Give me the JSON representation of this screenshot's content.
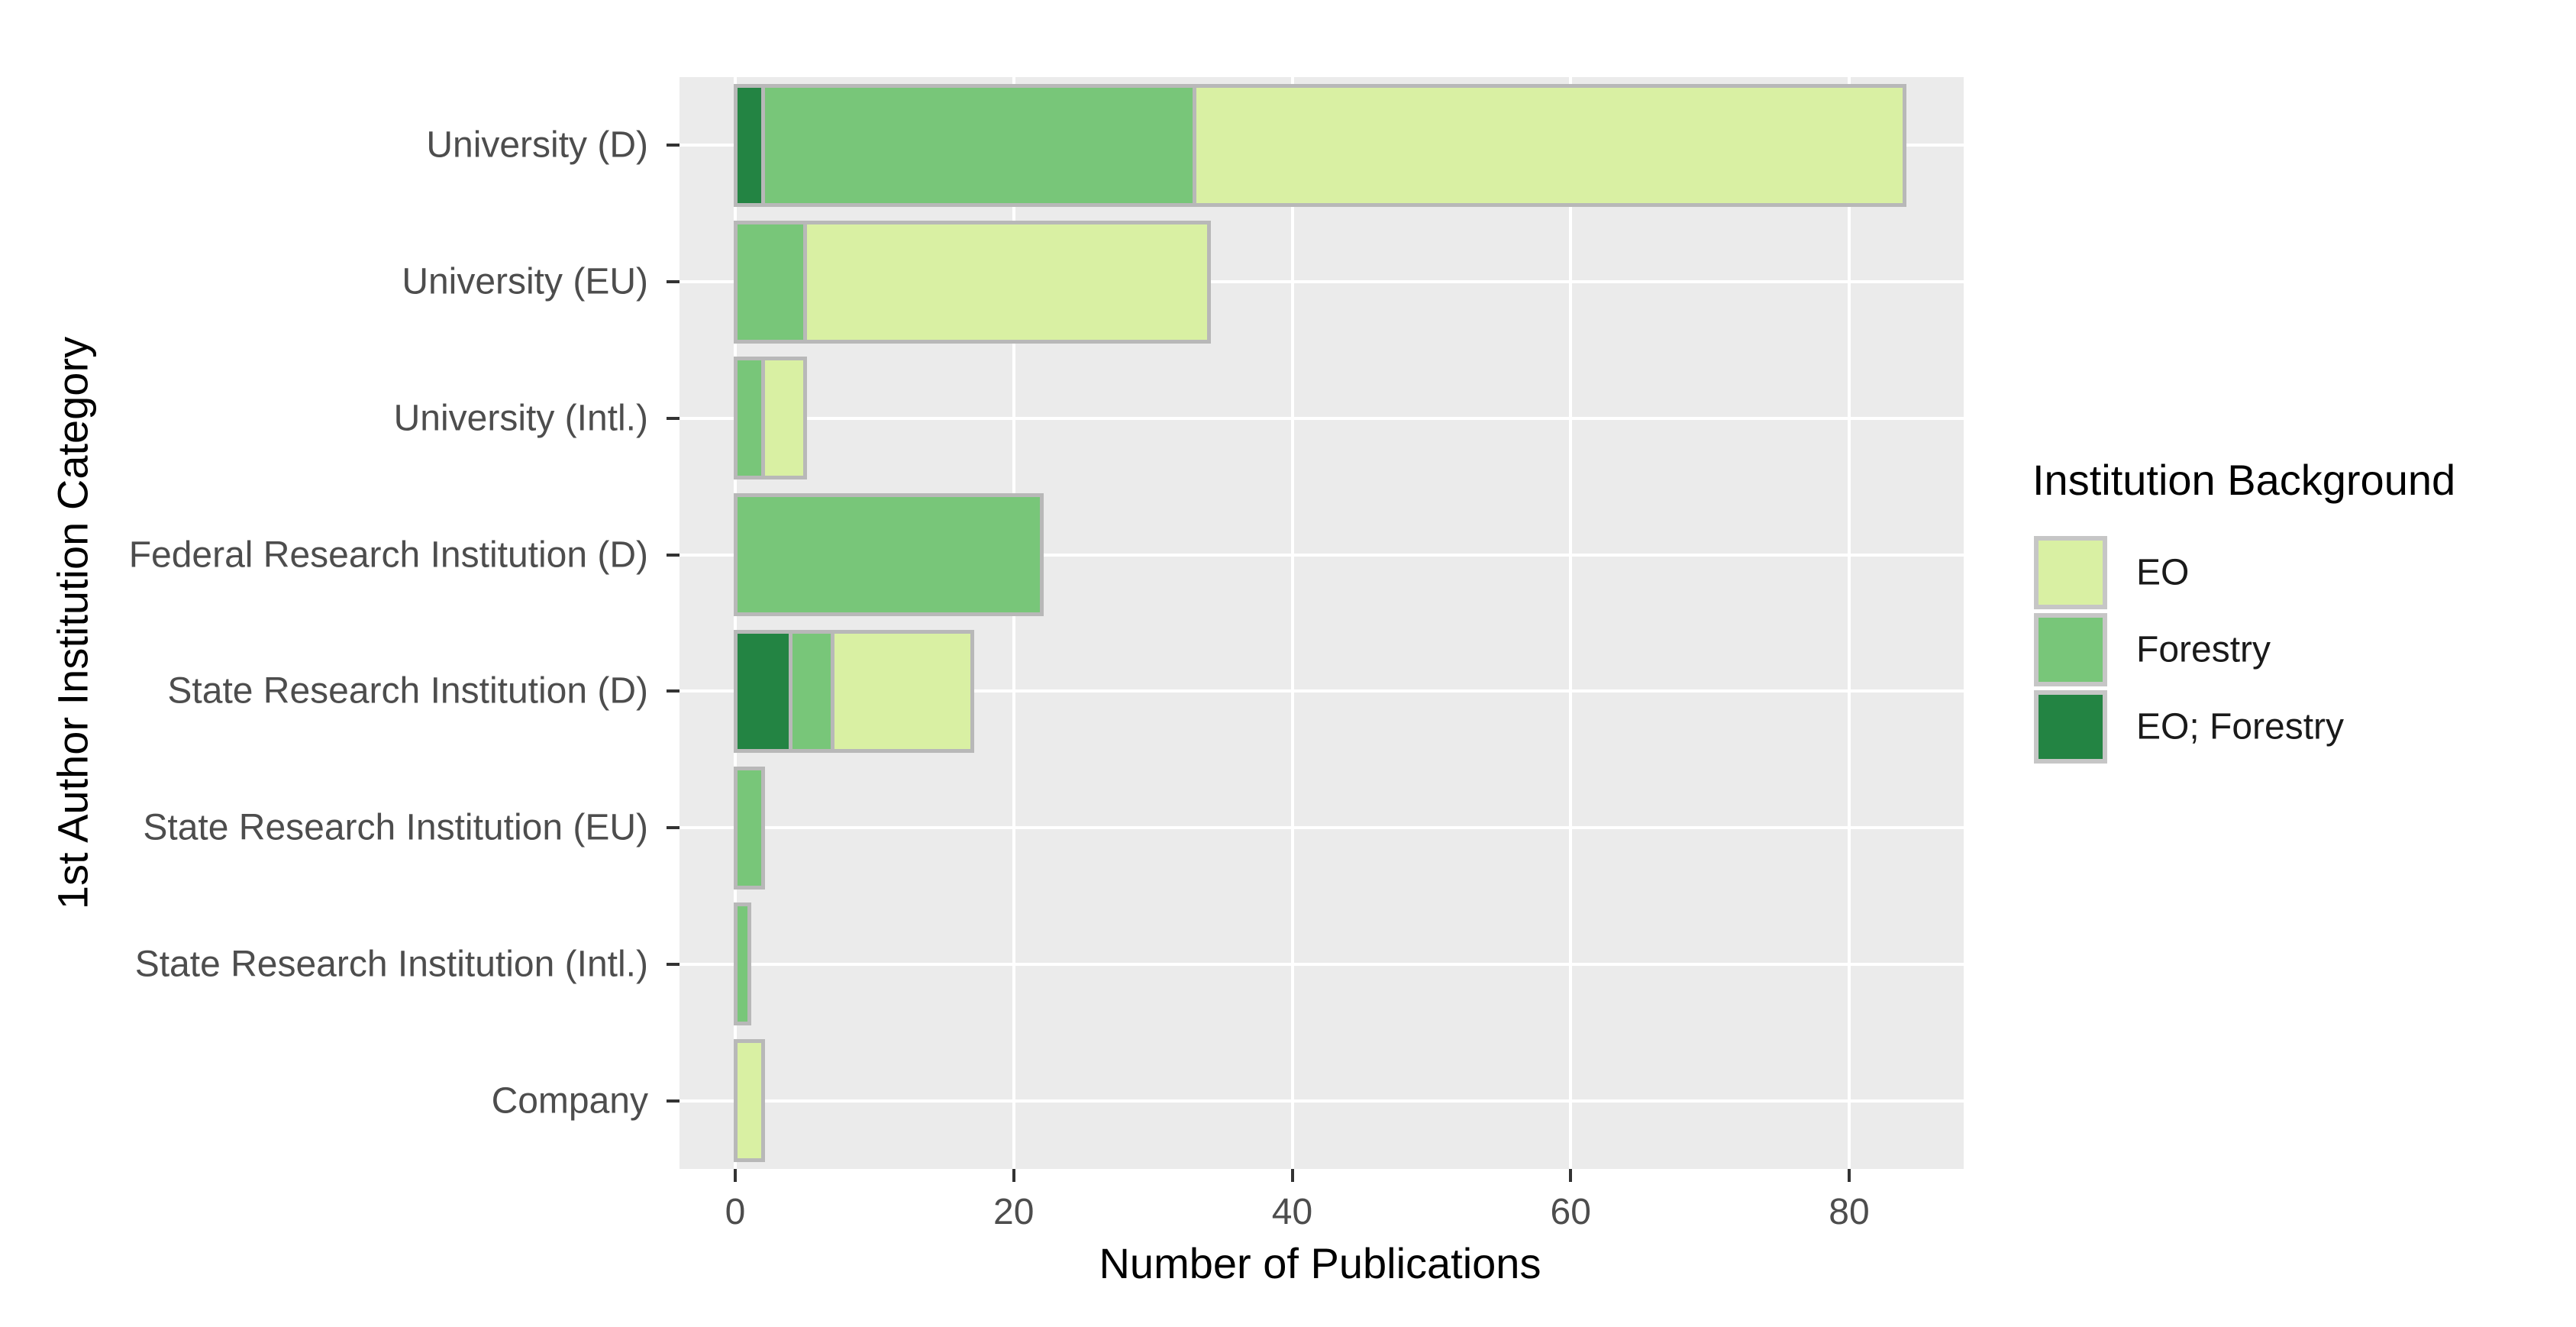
{
  "chart_data": {
    "type": "bar",
    "orientation": "horizontal",
    "stacked": true,
    "categories": [
      "University (D)",
      "University (EU)",
      "University (Intl.)",
      "Federal Research Institution (D)",
      "State Research Institution (D)",
      "State Research Institution (EU)",
      "State Research Institution (Intl.)",
      "Company"
    ],
    "series": [
      {
        "name": "EO",
        "color": "#d9f0a3",
        "values": [
          51,
          29,
          3,
          0,
          10,
          0,
          0,
          2
        ]
      },
      {
        "name": "Forestry",
        "color": "#78c679",
        "values": [
          31,
          5,
          2,
          22,
          3,
          2,
          1,
          0
        ]
      },
      {
        "name": "EO; Forestry",
        "color": "#238443",
        "values": [
          2,
          0,
          0,
          0,
          4,
          0,
          0,
          0
        ]
      }
    ],
    "stack_order": [
      "EO; Forestry",
      "Forestry",
      "EO"
    ],
    "totals": [
      84,
      34,
      5,
      22,
      17,
      2,
      1,
      2
    ],
    "xlabel": "Number of Publications",
    "ylabel": "1st Author Institution Category",
    "x_ticks": [
      "0",
      "20",
      "40",
      "60",
      "80"
    ],
    "x_tick_values": [
      0,
      20,
      40,
      60,
      80
    ],
    "xlim": [
      0,
      84
    ],
    "grid": "white major vertical gridlines at x ticks and white horizontal gridlines at category centers on gray panel",
    "legend": {
      "title": "Institution Background",
      "position": "right",
      "entries": [
        "EO",
        "Forestry",
        "EO; Forestry"
      ]
    }
  },
  "styles": {
    "panel_bg": "#ebebeb",
    "gridline_color": "#ffffff",
    "bar_stroke": "#b8b8b8",
    "tick_mark_color": "#333333",
    "tick_label_color": "#4d4d4d",
    "category_label_color": "#4d4d4d",
    "axis_title_color": "#000000",
    "legend_title_color": "#000000",
    "legend_label_color": "#1a1a1a",
    "legend_swatch_border": "#c6c6c6",
    "background": "#ffffff"
  }
}
